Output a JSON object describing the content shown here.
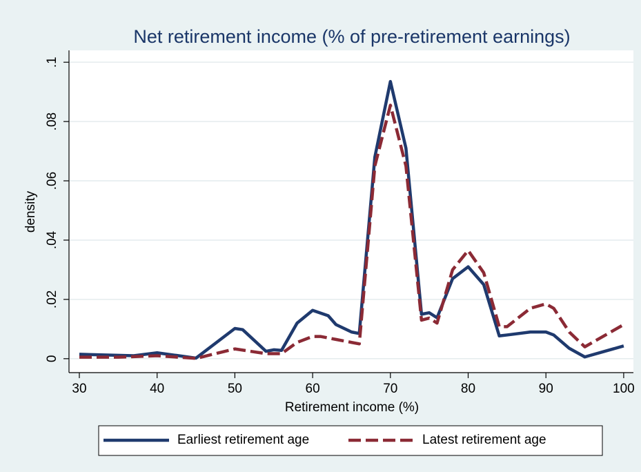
{
  "chart_data": {
    "type": "line",
    "title": "Net retirement income (% of pre-retirement earnings)",
    "x_label": "Retirement income (%)",
    "y_label": "density",
    "xlim": [
      28.67,
      101.25
    ],
    "ylim": [
      -0.0047,
      0.104
    ],
    "xticks": [
      30,
      40,
      50,
      60,
      70,
      80,
      90,
      100
    ],
    "yticks": [
      0,
      {
        "value": 0.02,
        "label": ".02"
      },
      {
        "value": 0.04,
        "label": ".04"
      },
      {
        "value": 0.06,
        "label": ".06"
      },
      {
        "value": 0.08,
        "label": ".08"
      },
      {
        "value": 0.1,
        "label": ".1"
      }
    ],
    "grid": true,
    "legend": "bottom",
    "series": [
      {
        "name": "Earliest retirement age",
        "color": "#1f3a6e",
        "dash": false,
        "x": [
          30,
          37,
          40,
          45,
          50,
          51,
          54,
          55,
          56,
          58,
          60,
          62,
          63,
          65,
          66,
          68,
          70,
          72,
          74,
          75,
          76,
          78,
          80,
          82,
          84,
          85,
          88,
          90,
          91,
          93,
          95,
          100
        ],
        "values": [
          0.0015,
          0.001,
          0.002,
          0.0002,
          0.0102,
          0.0098,
          0.0025,
          0.003,
          0.0028,
          0.012,
          0.0163,
          0.0145,
          0.0115,
          0.009,
          0.0085,
          0.068,
          0.0935,
          0.071,
          0.015,
          0.0155,
          0.0138,
          0.027,
          0.031,
          0.025,
          0.0077,
          0.008,
          0.009,
          0.009,
          0.008,
          0.0035,
          0.0006,
          0.0043
        ]
      },
      {
        "name": "Latest retirement age",
        "color": "#8b2a35",
        "dash": true,
        "x": [
          30,
          35,
          40,
          45,
          50,
          54,
          56,
          58,
          60,
          61,
          63,
          66,
          68,
          70,
          72,
          74,
          75,
          76,
          78,
          80,
          82,
          84,
          85,
          88,
          90,
          91,
          93,
          95,
          100
        ],
        "values": [
          0.0005,
          0.0005,
          0.001,
          0.0001,
          0.0033,
          0.0017,
          0.0017,
          0.0055,
          0.0075,
          0.0075,
          0.0065,
          0.005,
          0.065,
          0.0855,
          0.065,
          0.013,
          0.0137,
          0.012,
          0.03,
          0.0365,
          0.029,
          0.0108,
          0.0108,
          0.017,
          0.0185,
          0.017,
          0.009,
          0.004,
          0.0115
        ]
      }
    ]
  }
}
